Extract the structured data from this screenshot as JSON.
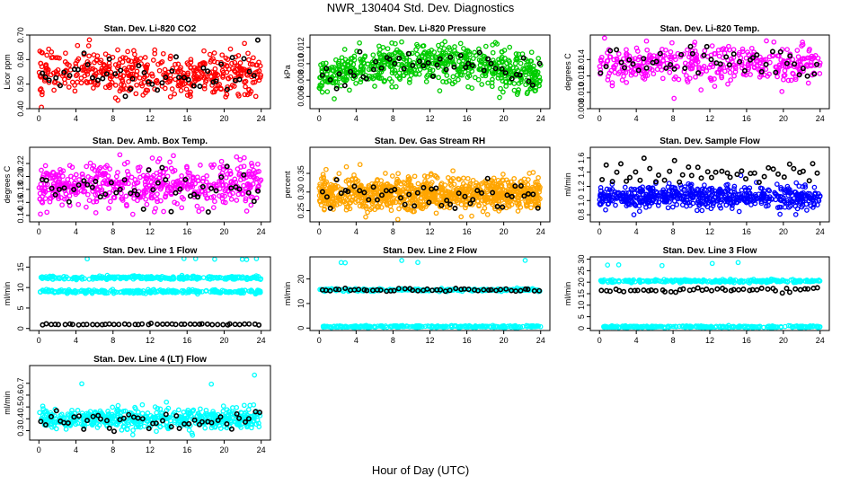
{
  "title": "NWR_130404  Std. Dev. Diagnostics",
  "xlabel": "Hour of Day (UTC)",
  "colors": {
    "black": "#000000",
    "red": "#ff0000",
    "green": "#00cc00",
    "magenta": "#ff00ff",
    "orange": "#ffa500",
    "blue": "#0000ff",
    "cyan": "#00ffff"
  },
  "chart_data": [
    {
      "type": "scatter",
      "title": "Stan. Dev. Li-820 CO2",
      "ylabel": "Licor ppm",
      "xlim": [
        -1,
        25
      ],
      "ylim": [
        0.4,
        0.7
      ],
      "xticks": [
        "0",
        "4",
        "8",
        "12",
        "16",
        "20",
        "24"
      ],
      "yticks": [
        "0.40",
        "0.50",
        "0.60",
        "0.70"
      ],
      "series": [
        {
          "color": "red",
          "n": 460,
          "mean": 0.545,
          "sd": 0.042,
          "min": 0.4,
          "max": 0.69
        },
        {
          "color": "black",
          "n": 48,
          "mean": 0.545,
          "sd": 0.045,
          "min": 0.4,
          "max": 0.69
        }
      ]
    },
    {
      "type": "scatter",
      "title": "Stan. Dev. Li-820 Pressure",
      "ylabel": "kPa",
      "xlim": [
        -1,
        25
      ],
      "ylim": [
        0.0045,
        0.0135
      ],
      "xticks": [
        "0",
        "4",
        "8",
        "12",
        "16",
        "20",
        "24"
      ],
      "yticks": [
        "0.006",
        "0.008",
        "0.010",
        "0.012"
      ],
      "series": [
        {
          "color": "green",
          "n": 620,
          "mean": 0.0083,
          "sd": 0.0012,
          "min": 0.0048,
          "max": 0.0128,
          "trend": 0.0018
        },
        {
          "color": "black",
          "n": 48,
          "mean": 0.0085,
          "sd": 0.001,
          "min": 0.0058,
          "max": 0.0125,
          "trend": 0.0015
        }
      ]
    },
    {
      "type": "scatter",
      "title": "Stan. Dev. Li-820 Temp.",
      "ylabel": "degrees C",
      "xlim": [
        -1,
        25
      ],
      "ylim": [
        0.008,
        0.017
      ],
      "xticks": [
        "0",
        "4",
        "8",
        "12",
        "16",
        "20",
        "24"
      ],
      "yticks": [
        "0.008",
        "0.010",
        "0.012",
        "0.014"
      ],
      "series": [
        {
          "color": "magenta",
          "n": 380,
          "mean": 0.0134,
          "sd": 0.0011,
          "min": 0.0082,
          "max": 0.0168
        },
        {
          "color": "black",
          "n": 48,
          "mean": 0.0136,
          "sd": 0.001,
          "min": 0.011,
          "max": 0.016
        }
      ]
    },
    {
      "type": "scatter",
      "title": "Stan. Dev. Amb. Box Temp.",
      "ylabel": "degrees C",
      "xlim": [
        -1,
        25
      ],
      "ylim": [
        0.13,
        0.245
      ],
      "xticks": [
        "0",
        "4",
        "8",
        "12",
        "16",
        "20",
        "24"
      ],
      "yticks": [
        "0.14",
        "0.16",
        "0.18",
        "0.20",
        "0.22"
      ],
      "series": [
        {
          "color": "magenta",
          "n": 520,
          "mean": 0.186,
          "sd": 0.017,
          "min": 0.14,
          "max": 0.24
        },
        {
          "color": "black",
          "n": 48,
          "mean": 0.182,
          "sd": 0.015,
          "min": 0.14,
          "max": 0.225
        }
      ]
    },
    {
      "type": "scatter",
      "title": "Stan. Dev. Gas Stream RH",
      "ylabel": "percent",
      "xlim": [
        -1,
        25
      ],
      "ylim": [
        0.22,
        0.42
      ],
      "xticks": [
        "0",
        "4",
        "8",
        "12",
        "16",
        "20",
        "24"
      ],
      "yticks": [
        "0.25",
        "0.30",
        "0.35"
      ],
      "series": [
        {
          "color": "orange",
          "n": 900,
          "mean": 0.295,
          "sd": 0.022,
          "min": 0.225,
          "max": 0.415
        },
        {
          "color": "black",
          "n": 48,
          "mean": 0.29,
          "sd": 0.022,
          "min": 0.25,
          "max": 0.36
        }
      ]
    },
    {
      "type": "scatter",
      "title": "Stan. Dev. Sample Flow",
      "ylabel": "ml/min",
      "xlim": [
        -1,
        25
      ],
      "ylim": [
        0.7,
        1.75
      ],
      "xticks": [
        "0",
        "4",
        "8",
        "12",
        "16",
        "20",
        "24"
      ],
      "yticks": [
        "0.8",
        "1.0",
        "1.2",
        "1.4",
        "1.6"
      ],
      "series": [
        {
          "color": "blue",
          "n": 600,
          "mean": 1.05,
          "sd": 0.08,
          "min": 0.74,
          "max": 1.4
        },
        {
          "color": "black",
          "n": 46,
          "mean": 1.38,
          "sd": 0.08,
          "min": 1.25,
          "max": 1.7
        }
      ]
    },
    {
      "type": "scatter",
      "title": "Stan. Dev. Line 1 Flow",
      "ylabel": "ml/min",
      "xlim": [
        -1,
        25
      ],
      "ylim": [
        -0.5,
        17.5
      ],
      "xticks": [
        "0",
        "4",
        "8",
        "12",
        "16",
        "20",
        "24"
      ],
      "yticks": [
        "0",
        "5",
        "10",
        "15"
      ],
      "series": [
        {
          "color": "cyan",
          "n": 260,
          "mean": 12.4,
          "sd": 0.2,
          "min": 11.8,
          "max": 13
        },
        {
          "color": "cyan",
          "n": 260,
          "mean": 9.0,
          "sd": 0.2,
          "min": 8.4,
          "max": 9.6
        },
        {
          "color": "cyan",
          "n": 7,
          "mean": 17,
          "sd": 0.1,
          "min": 16.7,
          "max": 17.2
        },
        {
          "color": "black",
          "n": 48,
          "mean": 1.0,
          "sd": 0.1,
          "min": 0.7,
          "max": 1.3
        }
      ]
    },
    {
      "type": "scatter",
      "title": "Stan. Dev. Line 2 Flow",
      "ylabel": "ml/min",
      "xlim": [
        -1,
        25
      ],
      "ylim": [
        -1,
        29
      ],
      "xticks": [
        "0",
        "4",
        "8",
        "12",
        "16",
        "20",
        "24"
      ],
      "yticks": [
        "0",
        "10",
        "20"
      ],
      "series": [
        {
          "color": "cyan",
          "n": 260,
          "mean": 15.5,
          "sd": 0.25,
          "min": 14.8,
          "max": 16.4
        },
        {
          "color": "cyan",
          "n": 260,
          "mean": 0.6,
          "sd": 0.2,
          "min": 0,
          "max": 1.2
        },
        {
          "color": "cyan",
          "n": 5,
          "mean": 27,
          "sd": 0.5,
          "min": 26,
          "max": 28.5
        },
        {
          "color": "black",
          "n": 48,
          "mean": 15.6,
          "sd": 0.3,
          "min": 15,
          "max": 16.4
        }
      ]
    },
    {
      "type": "scatter",
      "title": "Stan. Dev. Line 3 Flow",
      "ylabel": "ml/min",
      "xlim": [
        -1,
        25
      ],
      "ylim": [
        -1,
        31
      ],
      "xticks": [
        "0",
        "4",
        "8",
        "12",
        "16",
        "20",
        "24"
      ],
      "yticks": [
        "0",
        "5",
        "10",
        "15",
        "20",
        "25",
        "30"
      ],
      "series": [
        {
          "color": "cyan",
          "n": 260,
          "mean": 20.5,
          "sd": 0.3,
          "min": 19.6,
          "max": 21.4
        },
        {
          "color": "cyan",
          "n": 260,
          "mean": 0.6,
          "sd": 0.2,
          "min": 0,
          "max": 1.2
        },
        {
          "color": "cyan",
          "n": 5,
          "mean": 28,
          "sd": 0.8,
          "min": 27,
          "max": 29.8
        },
        {
          "color": "black",
          "n": 48,
          "mean": 16.5,
          "sd": 0.5,
          "min": 15.2,
          "max": 17.6
        }
      ]
    },
    {
      "type": "scatter",
      "title": "Stan. Dev. Line 4 (LT) Flow",
      "ylabel": "ml/min",
      "xlim": [
        -1,
        25
      ],
      "ylim": [
        0.22,
        0.85
      ],
      "xticks": [
        "0",
        "4",
        "8",
        "12",
        "16",
        "20",
        "24"
      ],
      "yticks": [
        "0.3",
        "0.4",
        "0.5",
        "0.6",
        "0.7"
      ],
      "series": [
        {
          "color": "cyan",
          "n": 520,
          "mean": 0.4,
          "sd": 0.045,
          "min": 0.26,
          "max": 0.55
        },
        {
          "color": "cyan",
          "n": 3,
          "mean": 0.74,
          "sd": 0.05,
          "min": 0.69,
          "max": 0.83
        },
        {
          "color": "black",
          "n": 48,
          "mean": 0.39,
          "sd": 0.05,
          "min": 0.29,
          "max": 0.55
        }
      ]
    }
  ]
}
